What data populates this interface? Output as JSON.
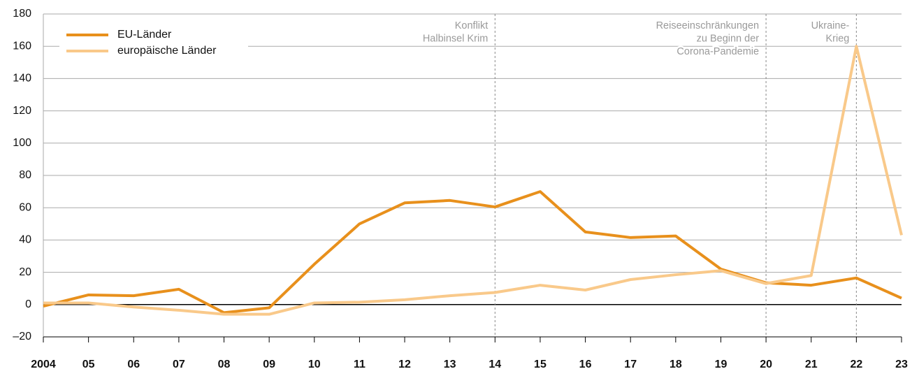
{
  "chart_data": {
    "type": "line",
    "categories": [
      "2004",
      "05",
      "06",
      "07",
      "08",
      "09",
      "10",
      "11",
      "12",
      "13",
      "14",
      "15",
      "16",
      "17",
      "18",
      "19",
      "20",
      "21",
      "22",
      "23"
    ],
    "series": [
      {
        "name": "EU-Länder",
        "color": "#e8901c",
        "values": [
          -1,
          6,
          5.5,
          9.5,
          -5,
          -2,
          25,
          50,
          63,
          64.5,
          60.5,
          70,
          45,
          41.5,
          42.5,
          22,
          13.5,
          12,
          16.5,
          4
        ]
      },
      {
        "name": "europäische Länder",
        "color": "#f9c98a",
        "values": [
          1,
          1,
          -1.5,
          -3.5,
          -6,
          -6,
          1,
          1.5,
          3,
          5.5,
          7.5,
          12,
          9,
          15.5,
          18.5,
          21,
          13,
          18,
          160,
          43
        ]
      }
    ],
    "ylim": [
      -20,
      180
    ],
    "yticks": [
      {
        "value": -20,
        "label": "–20"
      },
      0,
      20,
      40,
      60,
      80,
      100,
      120,
      140,
      160,
      180
    ],
    "grid": true,
    "legend": "top-left",
    "annotations": [
      {
        "x": "14",
        "lines": [
          "Konflikt",
          "Halbinsel Krim"
        ]
      },
      {
        "x": "20",
        "lines": [
          "Reiseeinschränkungen",
          "zu Beginn der",
          "Corona-Pandemie"
        ]
      },
      {
        "x": "22",
        "lines": [
          "Ukraine-",
          "Krieg"
        ]
      }
    ]
  }
}
